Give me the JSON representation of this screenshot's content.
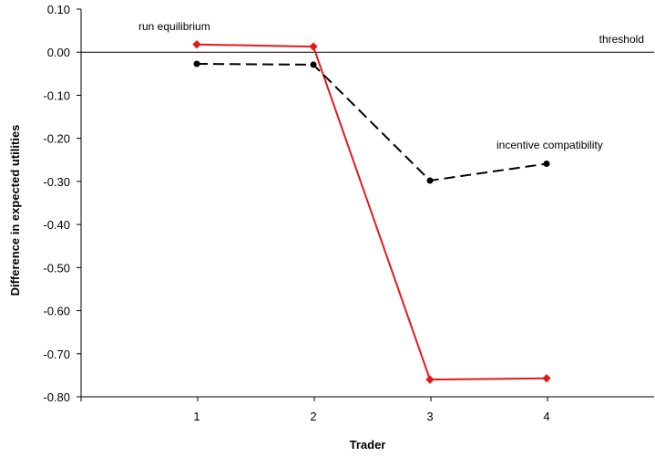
{
  "chart_data": {
    "type": "line",
    "title": "",
    "xlabel": "Trader",
    "ylabel": "Difference in expected utilities",
    "categories": [
      "1",
      "2",
      "3",
      "4"
    ],
    "ylim": [
      -0.8,
      0.1
    ],
    "yticks": [
      "0.10",
      "0.00",
      "-0.10",
      "-0.20",
      "-0.30",
      "-0.40",
      "-0.50",
      "-0.60",
      "-0.70",
      "-0.80"
    ],
    "ytick_values": [
      0.1,
      0.0,
      -0.1,
      -0.2,
      -0.3,
      -0.4,
      -0.5,
      -0.6,
      -0.7,
      -0.8
    ],
    "grid": false,
    "legend": "none",
    "threshold": {
      "value": 0.0,
      "label": "threshold",
      "color": "#000000"
    },
    "series": [
      {
        "label": "run equilibrium",
        "values": [
          0.018,
          0.013,
          -0.76,
          -0.757
        ],
        "color": "#e31a1c",
        "line_style": "solid",
        "marker": "diamond"
      },
      {
        "label": "incentive compatibility",
        "values": [
          -0.027,
          -0.029,
          -0.298,
          -0.259
        ],
        "color": "#000000",
        "line_style": "dashed",
        "marker": "circle"
      }
    ]
  }
}
